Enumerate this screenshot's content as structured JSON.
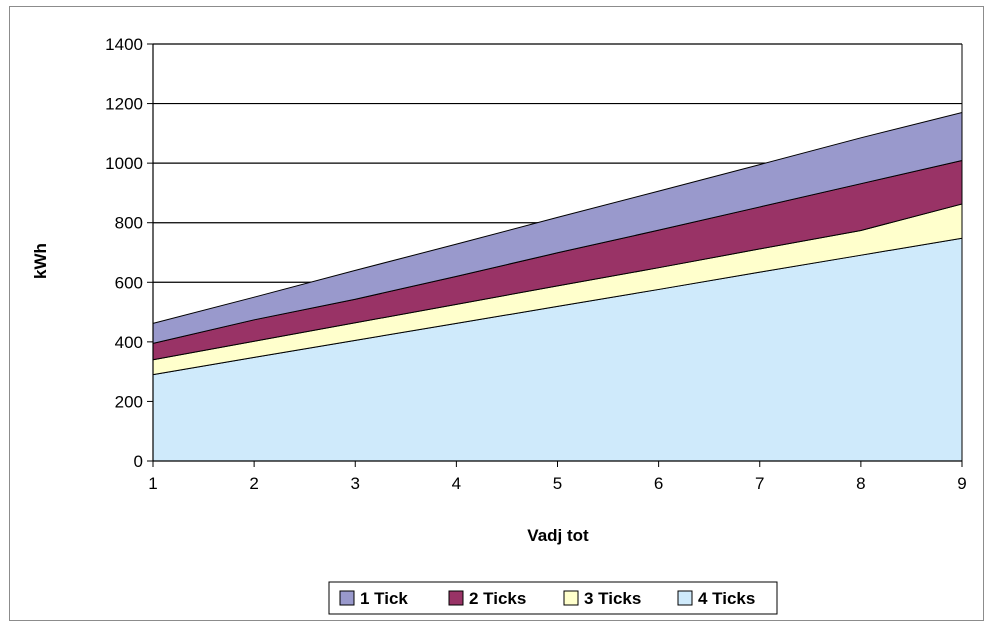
{
  "chart_data": {
    "type": "area",
    "stacked": true,
    "xlabel": "Vadj tot",
    "ylabel": "kWh",
    "x": [
      1,
      2,
      3,
      4,
      5,
      6,
      7,
      8,
      9
    ],
    "ylim": [
      0,
      1400
    ],
    "yticks": [
      "0",
      "200",
      "400",
      "600",
      "800",
      "1000",
      "1200",
      "1400"
    ],
    "xticks": [
      "1",
      "2",
      "3",
      "4",
      "5",
      "6",
      "7",
      "8",
      "9"
    ],
    "grid": "horizontal",
    "legend_position": "bottom",
    "series": [
      {
        "name": "4 Ticks",
        "color": "#cfeafb",
        "values": [
          290,
          348,
          405,
          462,
          519,
          576,
          634,
          691,
          748
        ]
      },
      {
        "name": "3 Ticks",
        "color": "#ffffcc",
        "values": [
          50,
          54,
          59,
          64,
          69,
          73,
          78,
          83,
          115
        ]
      },
      {
        "name": "2 Ticks",
        "color": "#993366",
        "values": [
          55,
          72,
          79,
          94,
          111,
          126,
          141,
          157,
          146
        ]
      },
      {
        "name": "1 Tick",
        "color": "#9999cc",
        "values": [
          67,
          76,
          97,
          108,
          119,
          131,
          142,
          154,
          161
        ]
      }
    ],
    "legend_order": [
      "1 Tick",
      "2 Ticks",
      "3 Ticks",
      "4 Ticks"
    ]
  }
}
